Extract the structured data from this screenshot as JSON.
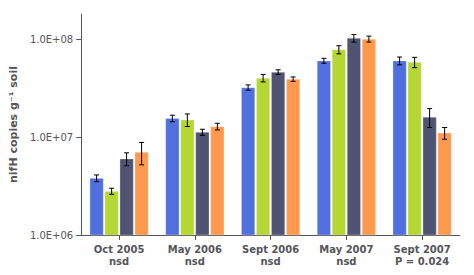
{
  "chart_data": {
    "type": "bar",
    "categories": [
      "Oct 2005\nnsd",
      "May 2006\nnsd",
      "Sept 2006\nnsd",
      "May 2007\nnsd",
      "Sept 2007\nP = 0.024"
    ],
    "series": [
      {
        "values": [
          3800000,
          15500000,
          32000000,
          60000000,
          60000000
        ],
        "errors": [
          300000,
          1200000,
          2000000,
          3500000,
          5500000
        ]
      },
      {
        "values": [
          2800000,
          15000000,
          40000000,
          78000000,
          58000000
        ],
        "errors": [
          200000,
          2200000,
          3500000,
          7500000,
          7000000
        ]
      },
      {
        "values": [
          6000000,
          11200000,
          46000000,
          102000000,
          16000000
        ],
        "errors": [
          900000,
          800000,
          2500000,
          9000000,
          3500000
        ]
      },
      {
        "values": [
          7000000,
          12800000,
          39000000,
          100000000,
          11000000
        ],
        "errors": [
          1800000,
          1000000,
          2000000,
          7000000,
          1500000
        ]
      }
    ],
    "ylabel": "nifH copies g⁻¹ soil",
    "log": "y",
    "ylim": [
      1000000,
      180000000
    ],
    "yticks": [
      {
        "value": 1000000,
        "label": "1.0E+06"
      },
      {
        "value": 10000000,
        "label": "1.0E+07"
      },
      {
        "value": 100000000,
        "label": "1.0E+08"
      }
    ],
    "grid": false
  }
}
